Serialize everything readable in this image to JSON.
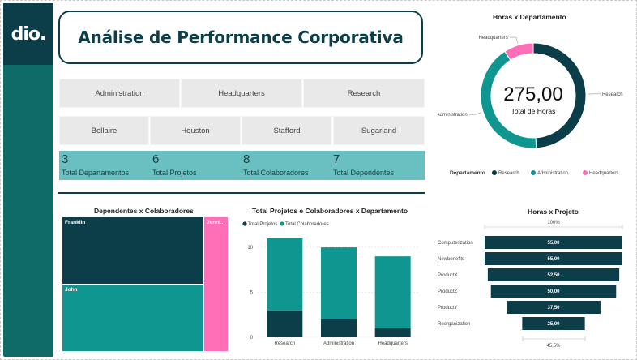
{
  "logo": {
    "text": "dio."
  },
  "title": "Análise de Performance Corporativa",
  "slicers": {
    "departments": [
      "Administration",
      "Headquarters",
      "Research"
    ],
    "locations": [
      "Bellaire",
      "Houston",
      "Stafford",
      "Sugarland"
    ]
  },
  "kpis": [
    {
      "value": "3",
      "label": "Total Departamentos"
    },
    {
      "value": "6",
      "label": "Total Projetos"
    },
    {
      "value": "8",
      "label": "Total Colaboradores"
    },
    {
      "value": "7",
      "label": "Total Dependentes"
    }
  ],
  "colors": {
    "dark": "#0c3e49",
    "teal": "#0f9690",
    "pink": "#ff6fb7",
    "kpi": "#6ac0c1"
  },
  "treemap": {
    "title": "Dependentes x Colaboradores",
    "items": [
      {
        "label": "Franklin",
        "value": 3
      },
      {
        "label": "John",
        "value": 3
      },
      {
        "label": "Jenni...",
        "value": 1
      }
    ]
  },
  "chart_data": [
    {
      "type": "pie",
      "title": "Horas x Departamento",
      "center_value": "275,00",
      "center_label": "Total de Horas",
      "legend_title": "Departamento",
      "legend_position": "bottom",
      "slices": [
        {
          "label": "Research",
          "value": 135
        },
        {
          "label": "Administration",
          "value": 115
        },
        {
          "label": "Headquarters",
          "value": 25
        }
      ]
    },
    {
      "type": "bar",
      "title": "Total Projetos e Colaboradores x Departamento",
      "legend_position": "top-left",
      "categories": [
        "Research",
        "Administration",
        "Headquarters"
      ],
      "series": [
        {
          "name": "Total Projetos",
          "values": [
            3,
            2,
            1
          ]
        },
        {
          "name": "Total Colaboradores",
          "values": [
            8,
            8,
            8
          ]
        }
      ],
      "ylim": [
        0,
        11
      ],
      "yticks": [
        0,
        5,
        10
      ],
      "grid": true
    },
    {
      "type": "bar",
      "title": "Horas x Projeto",
      "top_label": "100%",
      "bottom_label": "45,5%",
      "categories": [
        "Computerization",
        "Newbenefits",
        "ProductX",
        "ProductZ",
        "ProductY",
        "Reorganization"
      ],
      "values": [
        55,
        55,
        52.5,
        50,
        37.5,
        25
      ],
      "value_labels": [
        "55,00",
        "55,00",
        "52,50",
        "50,00",
        "37,50",
        "25,00"
      ]
    }
  ]
}
